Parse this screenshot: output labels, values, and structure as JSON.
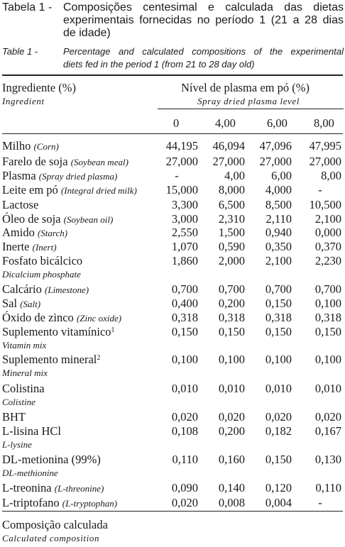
{
  "caption": {
    "pt_label": "Tabela 1 -",
    "pt_lines": [
      "Composições centesimal e calculada das dietas",
      "experimentais fornecidas no período 1 (21 a 28 dias",
      "de idade)"
    ],
    "en_label": "Table 1 -",
    "en_lines": [
      "Percentage and calculated compositions of the experimental",
      "diets fed in the period 1 (from 21 to 28 day old)"
    ]
  },
  "header": {
    "ingredient_pt": "Ingrediente (%)",
    "ingredient_en": "Ingredient",
    "plasma_pt": "Nível de plasma em pó (%)",
    "plasma_en": "Spray dried plasma level",
    "levels": [
      "0",
      "4,00",
      "6,00",
      "8,00"
    ]
  },
  "rows": [
    {
      "pt": "Milho",
      "en": "(Corn)",
      "values": [
        "44,195",
        "46,094",
        "47,096",
        "47,995"
      ]
    },
    {
      "pt": "Farelo de soja",
      "en": "(Soybean meal)",
      "values": [
        "27,000",
        "27,000",
        "27,000",
        "27,000"
      ]
    },
    {
      "pt": "Plasma",
      "en": "(Spray dried plasma)",
      "values": [
        "-",
        "4,00",
        "6,00",
        "8,00"
      ]
    },
    {
      "pt": "Leite em pó",
      "en": "(Integral dried milk)",
      "values": [
        "15,000",
        "8,000",
        "4,000",
        "-"
      ]
    },
    {
      "pt": "Lactose",
      "en": "",
      "values": [
        "3,300",
        "6,500",
        "8,500",
        "10,500"
      ]
    },
    {
      "pt": "Óleo de soja",
      "en": "(Soybean oil)",
      "values": [
        "3,000",
        "2,310",
        "2,110",
        "2,100"
      ]
    },
    {
      "pt": "Amido",
      "en": "(Starch)",
      "values": [
        "2,550",
        "1,500",
        "0,940",
        "0,000"
      ]
    },
    {
      "pt": "Inerte",
      "en": "(Inert)",
      "values": [
        "1,070",
        "0,590",
        "0,350",
        "0,370"
      ]
    },
    {
      "pt": "Fosfato bicálcico",
      "en": "",
      "values": [
        "1,860",
        "2,000",
        "2,100",
        "2,230"
      ],
      "en_below": "Dicalcium phosphate"
    },
    {
      "pt": "Calcário",
      "en": "(Limestone)",
      "values": [
        "0,700",
        "0,700",
        "0,700",
        "0,700"
      ]
    },
    {
      "pt": "Sal",
      "en": "(Salt)",
      "values": [
        "0,400",
        "0,200",
        "0,150",
        "0,100"
      ]
    },
    {
      "pt": "Óxido de zinco",
      "en": "(Zinc oxide)",
      "values": [
        "0,318",
        "0,318",
        "0,318",
        "0,318"
      ]
    },
    {
      "pt": "Suplemento vitamínico",
      "sup": "1",
      "en": "",
      "values": [
        "0,150",
        "0,150",
        "0,150",
        "0,150"
      ],
      "en_below": "Vitamin mix"
    },
    {
      "pt": "Suplemento mineral",
      "sup": "2",
      "en": "",
      "values": [
        "0,100",
        "0,100",
        "0,100",
        "0,100"
      ],
      "en_below": "Mineral mix"
    },
    {
      "pt": "Colistina",
      "en": "",
      "values": [
        "0,010",
        "0,010",
        "0,010",
        "0,010"
      ],
      "en_below": "Colistine"
    },
    {
      "pt": "BHT",
      "en": "",
      "values": [
        "0,020",
        "0,020",
        "0,020",
        "0,020"
      ]
    },
    {
      "pt": "L-lisina HCl",
      "en": "",
      "values": [
        "0,108",
        "0,200",
        "0,182",
        "0,167"
      ],
      "en_below": "L-lysine"
    },
    {
      "pt": "DL-metionina (99%)",
      "en": "",
      "values": [
        "0,110",
        "0,160",
        "0,150",
        "0,130"
      ],
      "en_below": "DL-methionine"
    },
    {
      "pt": "L-treonina",
      "en": "(L-threonine)",
      "values": [
        "0,090",
        "0,140",
        "0,120",
        "0,110"
      ]
    },
    {
      "pt": "L-triptofano",
      "en": "(L-tryptophan)",
      "values": [
        "0,020",
        "0,008",
        "0,004",
        "-"
      ]
    }
  ],
  "footer": {
    "pt": "Composição calculada",
    "en": "Calculated composition"
  }
}
